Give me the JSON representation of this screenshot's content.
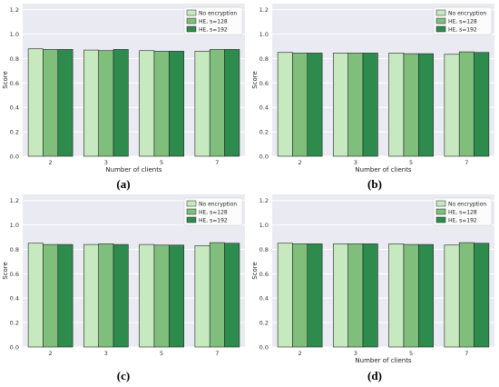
{
  "figure": {
    "captions": [
      "(a)",
      "(b)",
      "(c)",
      "(d)"
    ]
  },
  "colors": {
    "plot_bg": "#eaeaf2",
    "grid": "#ffffff",
    "series": [
      "#c7e9c0",
      "#7fbf7b",
      "#2e8b4e"
    ],
    "edge": "#222222"
  },
  "chart_data": [
    {
      "type": "bar",
      "caption": "(a)",
      "xlabel": "Number of clients",
      "ylabel": "Score",
      "categories": [
        "2",
        "3",
        "5",
        "7"
      ],
      "series": [
        {
          "name": "No encryption",
          "values": [
            0.88,
            0.87,
            0.865,
            0.86
          ]
        },
        {
          "name": "HE, s=128",
          "values": [
            0.875,
            0.865,
            0.86,
            0.875
          ]
        },
        {
          "name": "HE, s=192",
          "values": [
            0.875,
            0.875,
            0.86,
            0.875
          ]
        }
      ],
      "ylim": [
        0,
        1.25
      ],
      "yticks": [
        "0.0",
        "0.2",
        "0.4",
        "0.6",
        "0.8",
        "1.0",
        "1.2"
      ],
      "grid": true,
      "legend": "top-right"
    },
    {
      "type": "bar",
      "caption": "(b)",
      "xlabel": "Number of clients",
      "ylabel": "Score",
      "categories": [
        "2",
        "3",
        "5",
        "7"
      ],
      "series": [
        {
          "name": "No encryption",
          "values": [
            0.85,
            0.845,
            0.845,
            0.835
          ]
        },
        {
          "name": "HE, s=128",
          "values": [
            0.845,
            0.845,
            0.84,
            0.855
          ]
        },
        {
          "name": "HE, s=192",
          "values": [
            0.845,
            0.845,
            0.84,
            0.85
          ]
        }
      ],
      "ylim": [
        0,
        1.25
      ],
      "yticks": [
        "0.0",
        "0.2",
        "0.4",
        "0.6",
        "0.8",
        "1.0",
        "1.2"
      ],
      "grid": true,
      "legend": "top-right"
    },
    {
      "type": "bar",
      "caption": "(c)",
      "xlabel": "",
      "ylabel": "Score",
      "categories": [
        "2",
        "3",
        "5",
        "7"
      ],
      "series": [
        {
          "name": "No encryption",
          "values": [
            0.85,
            0.84,
            0.84,
            0.83
          ]
        },
        {
          "name": "HE, s=128",
          "values": [
            0.84,
            0.845,
            0.835,
            0.855
          ]
        },
        {
          "name": "HE, s=192",
          "values": [
            0.84,
            0.84,
            0.835,
            0.85
          ]
        }
      ],
      "ylim": [
        0,
        1.25
      ],
      "yticks": [
        "0.0",
        "0.2",
        "0.4",
        "0.6",
        "0.8",
        "1.0",
        "1.2"
      ],
      "grid": true,
      "legend": "top-right"
    },
    {
      "type": "bar",
      "caption": "(d)",
      "xlabel": "Number of clients",
      "ylabel": "Score",
      "categories": [
        "2",
        "3",
        "5",
        "7"
      ],
      "series": [
        {
          "name": "No encryption",
          "values": [
            0.85,
            0.845,
            0.845,
            0.835
          ]
        },
        {
          "name": "HE, s=128",
          "values": [
            0.845,
            0.845,
            0.84,
            0.855
          ]
        },
        {
          "name": "HE, s=192",
          "values": [
            0.845,
            0.845,
            0.84,
            0.85
          ]
        }
      ],
      "ylim": [
        0,
        1.25
      ],
      "yticks": [
        "0.0",
        "0.2",
        "0.4",
        "0.6",
        "0.8",
        "1.0",
        "1.2"
      ],
      "grid": true,
      "legend": "top-right"
    }
  ]
}
